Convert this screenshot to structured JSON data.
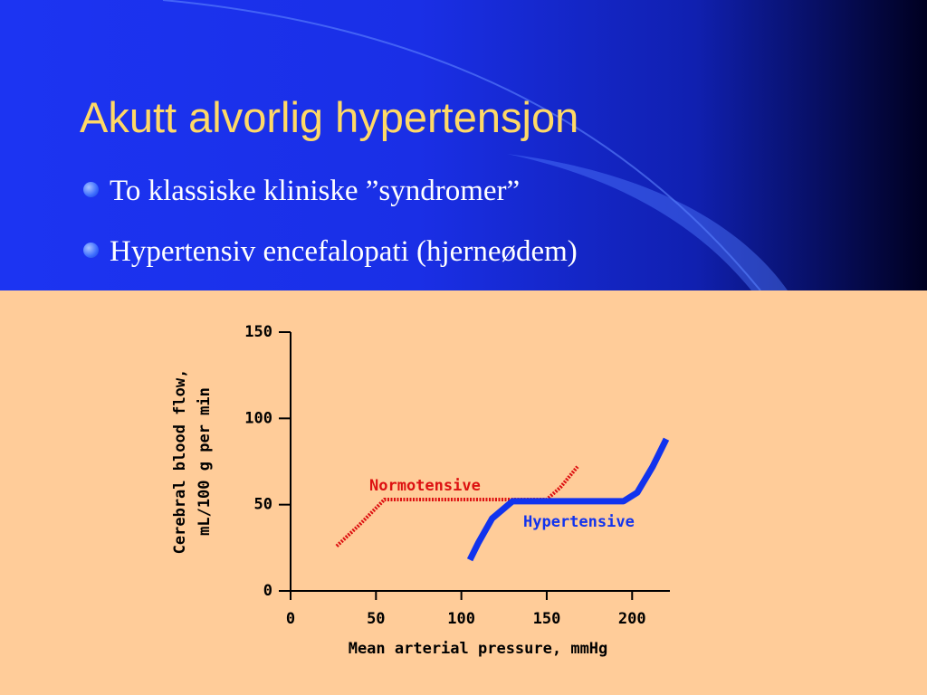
{
  "slide": {
    "title": "Akutt alvorlig hypertensjon",
    "bullets": [
      "To klassiske kliniske ”syndromer”",
      "Hypertensiv encefalopati (hjerneødem)"
    ]
  },
  "chart_data": {
    "type": "line",
    "xlabel": "Mean arterial pressure, mmHg",
    "ylabel": [
      "Cerebral blood flow,",
      "mL/100 g per min"
    ],
    "xlim": [
      0,
      220
    ],
    "xticks": [
      0,
      50,
      100,
      150,
      200
    ],
    "ylim": [
      0,
      150
    ],
    "yticks": [
      0,
      50,
      100,
      150
    ],
    "series": [
      {
        "name": "Normotensive",
        "color": "#dd1111",
        "style": "dotted",
        "x": [
          27,
          40,
          55,
          100,
          150,
          158,
          168
        ],
        "values": [
          26,
          38,
          53,
          53,
          53,
          60,
          72
        ]
      },
      {
        "name": "Hypertensive",
        "color": "#1133ee",
        "style": "solid",
        "x": [
          105,
          110,
          118,
          130,
          150,
          195,
          203,
          212,
          220
        ],
        "values": [
          18,
          28,
          42,
          52,
          52,
          52,
          57,
          72,
          88
        ]
      }
    ]
  }
}
